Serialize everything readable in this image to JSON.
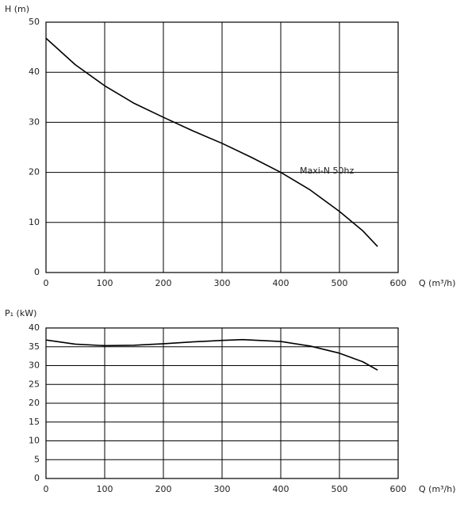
{
  "chart_data": [
    {
      "type": "line",
      "y_label": "H (m)",
      "x_label": "Q (m³/h)",
      "annotation": "Maxi-N 50hz",
      "x": [
        0,
        50,
        100,
        150,
        200,
        250,
        300,
        350,
        400,
        450,
        500,
        540,
        565
      ],
      "values": [
        46.8,
        41.5,
        37.3,
        33.8,
        31,
        28.3,
        25.8,
        23,
        20,
        16.5,
        12.2,
        8.3,
        5.2
      ],
      "color": "#000000",
      "grid": true,
      "xlim": [
        0,
        600
      ],
      "xticks": [
        0,
        100,
        200,
        300,
        400,
        500,
        600
      ],
      "ylim": [
        0,
        50
      ],
      "yticks": [
        0,
        10,
        20,
        30,
        40,
        50
      ]
    },
    {
      "type": "line",
      "y_label": "P₁ (kW)",
      "x_label": "Q (m³/h)",
      "x": [
        0,
        50,
        100,
        150,
        200,
        250,
        300,
        335,
        400,
        450,
        500,
        540,
        565
      ],
      "values": [
        36.8,
        35.7,
        35.3,
        35.4,
        35.8,
        36.3,
        36.7,
        36.9,
        36.4,
        35.2,
        33.3,
        31,
        28.8
      ],
      "color": "#000000",
      "grid": true,
      "xlim": [
        0,
        600
      ],
      "xticks": [
        0,
        100,
        200,
        300,
        400,
        500,
        600
      ],
      "ylim": [
        0,
        40
      ],
      "yticks": [
        0,
        5,
        10,
        15,
        20,
        25,
        30,
        35,
        40
      ]
    }
  ]
}
